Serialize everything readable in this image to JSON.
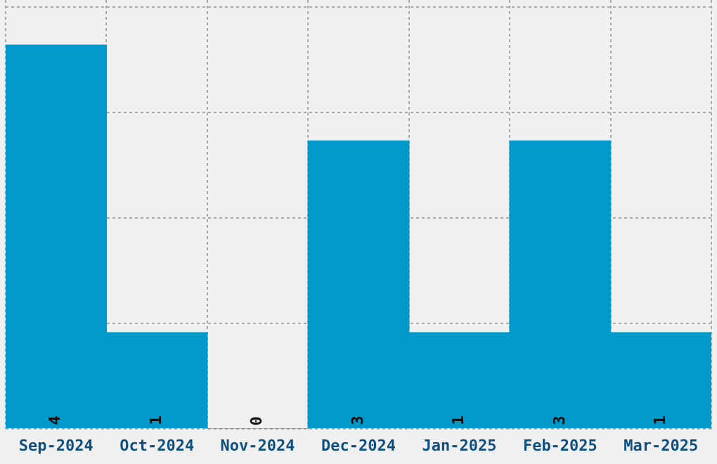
{
  "chart_data": {
    "type": "bar",
    "categories": [
      "Sep-2024",
      "Oct-2024",
      "Nov-2024",
      "Dec-2024",
      "Jan-2025",
      "Feb-2025",
      "Mar-2025"
    ],
    "values": [
      4,
      1,
      0,
      3,
      1,
      3,
      1
    ],
    "color": "#0099cc",
    "ylim": [
      0,
      4.47
    ],
    "yticks": [
      {
        "value": 0,
        "label": null
      },
      {
        "value": 1.1,
        "label": null
      },
      {
        "value": 2.2,
        "label": null
      },
      {
        "value": 3.3,
        "label": null
      },
      {
        "value": 4.4,
        "label": null
      }
    ],
    "tick_labels": "x",
    "grid": true,
    "data_labels": true,
    "legend": false
  }
}
